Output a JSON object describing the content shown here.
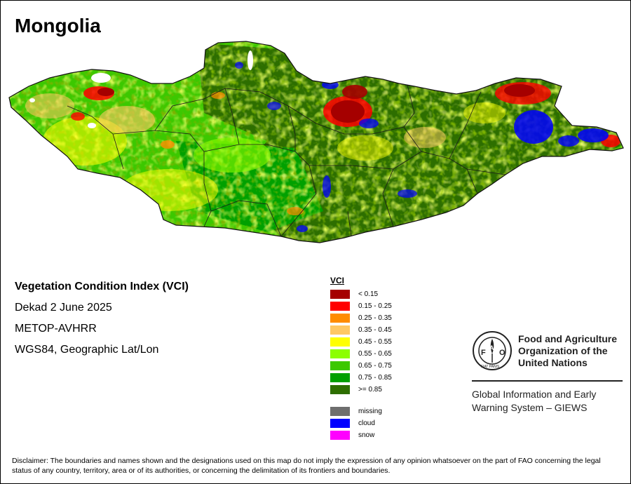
{
  "title": "Mongolia",
  "info": {
    "product": "Vegetation Condition Index (VCI)",
    "period": "Dekad 2 June 2025",
    "sensor": "METOP-AVHRR",
    "projection": "WGS84, Geographic Lat/Lon"
  },
  "legend": {
    "title": "VCI",
    "classes": [
      {
        "label": "< 0.15",
        "color": "#a50000"
      },
      {
        "label": "0.15 - 0.25",
        "color": "#ff0000"
      },
      {
        "label": "0.25 - 0.35",
        "color": "#ff8c00"
      },
      {
        "label": "0.35 - 0.45",
        "color": "#ffc864"
      },
      {
        "label": "0.45 - 0.55",
        "color": "#ffff00"
      },
      {
        "label": "0.55 - 0.65",
        "color": "#8cff00"
      },
      {
        "label": "0.65 - 0.75",
        "color": "#3cc800"
      },
      {
        "label": "0.75 - 0.85",
        "color": "#00a000"
      },
      {
        "label": ">= 0.85",
        "color": "#2d6e00"
      }
    ],
    "special": [
      {
        "label": "missing",
        "color": "#6e6e6e"
      },
      {
        "label": "cloud",
        "color": "#0000ff"
      },
      {
        "label": "snow",
        "color": "#ff00ff"
      }
    ]
  },
  "organization": {
    "name_lines": [
      "Food and Agriculture",
      "Organization of the",
      "United Nations"
    ],
    "logo_text": "FAO",
    "logo_motto": "FIAT PANIS",
    "system_lines": [
      "Global Information and Early",
      "Warning System – GIEWS"
    ]
  },
  "disclaimer": "Disclaimer: The boundaries and names shown and the designations used on this map do not imply the expression of any opinion whatsoever on the part of FAO concerning the legal status of any country, territory, area or of its authorities, or concerning the delimitation of its frontiers and boundaries."
}
